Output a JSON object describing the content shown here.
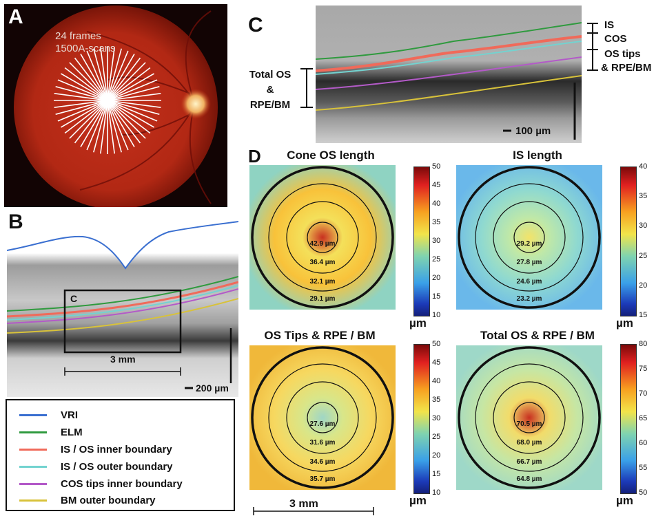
{
  "panels": {
    "a": {
      "letter": "A",
      "frames": "24 frames",
      "scans": "1500A-scans"
    },
    "b": {
      "letter": "B",
      "inset": "C",
      "width_label": "3 mm",
      "scale_label": "200 µm"
    },
    "c": {
      "letter": "C",
      "scale_label": "100 µm",
      "right_labels": [
        "IS",
        "COS",
        "OS tips",
        "& RPE/BM"
      ],
      "left_labels": [
        "Total OS",
        "&",
        "RPE/BM"
      ]
    },
    "d": {
      "letter": "D",
      "width_label": "3 mm"
    }
  },
  "maps": [
    {
      "title": "Cone OS length",
      "ring_values": [
        "42.9 µm",
        "36.4 µm",
        "32.1 µm",
        "29.1 µm"
      ],
      "ticks": [
        "50",
        "45",
        "40",
        "35",
        "30",
        "25",
        "20",
        "15",
        "10"
      ],
      "unit": "µm"
    },
    {
      "title": "IS length",
      "ring_values": [
        "29.2 µm",
        "27.8 µm",
        "24.6 µm",
        "23.2 µm"
      ],
      "ticks": [
        "40",
        "35",
        "30",
        "25",
        "20",
        "15"
      ],
      "unit": "µm"
    },
    {
      "title": "OS Tips & RPE / BM",
      "ring_values": [
        "27.6 µm",
        "31.6 µm",
        "34.6 µm",
        "35.7 µm"
      ],
      "ticks": [
        "50",
        "45",
        "40",
        "35",
        "30",
        "25",
        "20",
        "15",
        "10"
      ],
      "unit": "µm"
    },
    {
      "title": "Total OS & RPE / BM",
      "ring_values": [
        "70.5 µm",
        "68.0 µm",
        "66.7 µm",
        "64.8 µm"
      ],
      "ticks": [
        "80",
        "75",
        "70",
        "65",
        "60",
        "55",
        "50"
      ],
      "unit": "µm"
    }
  ],
  "legend": [
    {
      "label": "VRI",
      "color": "#3a6fd0"
    },
    {
      "label": "ELM",
      "color": "#2f9a3e"
    },
    {
      "label": "IS / OS inner boundary",
      "color": "#f06a5a"
    },
    {
      "label": "IS / OS outer boundary",
      "color": "#73d3d0"
    },
    {
      "label": "COS tips inner boundary",
      "color": "#b35ac8"
    },
    {
      "label": "BM outer boundary",
      "color": "#d8c23a"
    }
  ]
}
